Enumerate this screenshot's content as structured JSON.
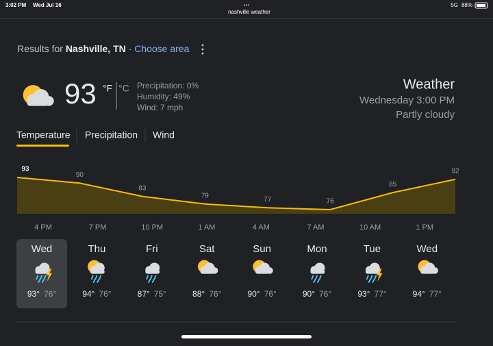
{
  "status_bar": {
    "time": "3:02 PM",
    "date": "Wed Jul 16",
    "url": "nashville weather",
    "signal": "5G",
    "battery": "88%"
  },
  "header": {
    "prefix": "Results for",
    "location": "Nashville, TN",
    "separator": "·",
    "link": "Choose area"
  },
  "current": {
    "temperature": "93",
    "unit_f": "°F",
    "unit_c": "°C",
    "precipitation": "Precipitation: 0%",
    "humidity": "Humidity: 49%",
    "wind": "Wind: 7 mph"
  },
  "summary": {
    "title": "Weather",
    "time": "Wednesday 3:00 PM",
    "condition": "Partly cloudy"
  },
  "tabs": [
    "Temperature",
    "Precipitation",
    "Wind"
  ],
  "chart_data": {
    "type": "area",
    "color": "#fbbc04",
    "categories": [
      "4 PM",
      "7 PM",
      "10 PM",
      "1 AM",
      "4 AM",
      "7 AM",
      "10 AM",
      "1 PM"
    ],
    "values": [
      93,
      90,
      83,
      79,
      77,
      76,
      85,
      92
    ]
  },
  "forecast": [
    {
      "day": "Wed",
      "high": "93°",
      "low": "76°"
    },
    {
      "day": "Thu",
      "high": "94°",
      "low": "76°"
    },
    {
      "day": "Fri",
      "high": "87°",
      "low": "75°"
    },
    {
      "day": "Sat",
      "high": "88°",
      "low": "76°"
    },
    {
      "day": "Sun",
      "high": "90°",
      "low": "76°"
    },
    {
      "day": "Mon",
      "high": "90°",
      "low": "76°"
    },
    {
      "day": "Tue",
      "high": "93°",
      "low": "77°"
    },
    {
      "day": "Wed",
      "high": "94°",
      "low": "77°"
    }
  ]
}
